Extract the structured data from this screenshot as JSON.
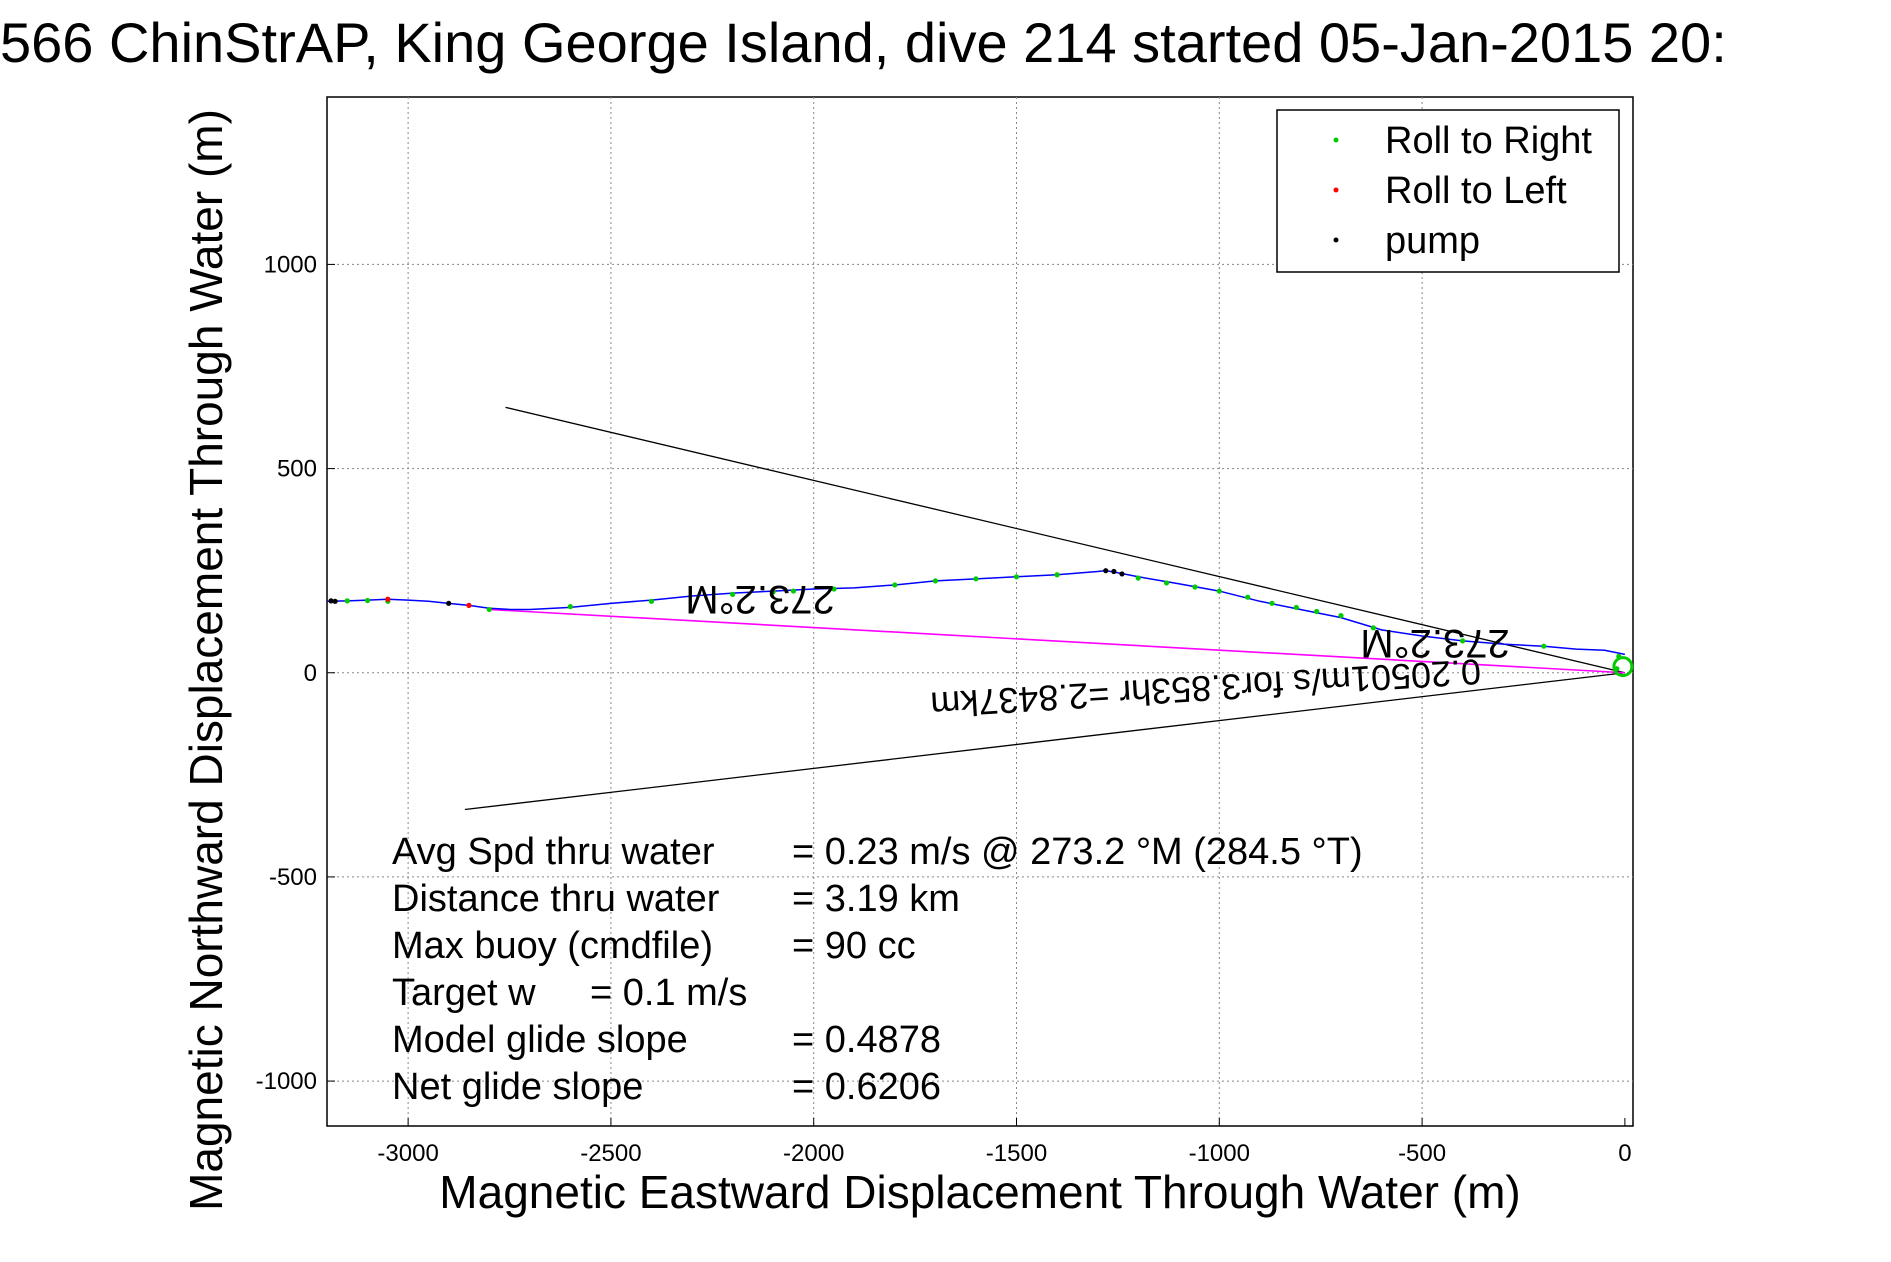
{
  "chart_data": {
    "type": "line",
    "title": "566 ChinStrAP, King George Island, dive 214 started 05-Jan-2015 20:",
    "xlabel": "Magnetic Eastward Displacement Through Water (m)",
    "ylabel": "Magnetic Northward Displacement Through Water (m)",
    "xlim": [
      -3200,
      20
    ],
    "ylim": [
      -1110,
      1410
    ],
    "grid": true,
    "x_ticks": [
      -3000,
      -2500,
      -2000,
      -1500,
      -1000,
      -500,
      0
    ],
    "y_ticks": [
      -1000,
      -500,
      0,
      500,
      1000
    ],
    "legend_placement": "top-right",
    "legend": [
      {
        "label": "Roll to Right",
        "color": "#00cc00"
      },
      {
        "label": "Roll to Left",
        "color": "#ff0000"
      },
      {
        "label": "pump",
        "color": "#000000"
      }
    ],
    "series": [
      {
        "kind": "track",
        "color": "#0000ff",
        "x": [
          0,
          -50,
          -120,
          -200,
          -300,
          -400,
          -500,
          -600,
          -700,
          -800,
          -900,
          -1000,
          -1100,
          -1200,
          -1250,
          -1280,
          -1300,
          -1400,
          -1500,
          -1600,
          -1700,
          -1800,
          -1900,
          -2000,
          -2100,
          -2200,
          -2300,
          -2400,
          -2500,
          -2600,
          -2700,
          -2750,
          -2800,
          -2850,
          -2900,
          -2950,
          -3000,
          -3050,
          -3100,
          -3150,
          -3200
        ],
        "y": [
          45,
          55,
          58,
          65,
          70,
          78,
          90,
          105,
          135,
          155,
          175,
          200,
          218,
          235,
          245,
          250,
          248,
          240,
          235,
          230,
          225,
          215,
          208,
          205,
          200,
          195,
          188,
          178,
          170,
          160,
          155,
          155,
          158,
          165,
          170,
          175,
          178,
          180,
          178,
          176,
          175
        ]
      },
      {
        "kind": "markers",
        "name": "Roll to Right",
        "color": "#00cc00",
        "x": [
          -15,
          -20,
          -200,
          -400,
          -620,
          -700,
          -760,
          -810,
          -870,
          -930,
          -1000,
          -1060,
          -1130,
          -1200,
          -1400,
          -1500,
          -1600,
          -1700,
          -1800,
          -1950,
          -2050,
          -2100,
          -2200,
          -2400,
          -2600,
          -2800,
          -3050,
          -3100,
          -3150
        ],
        "y": [
          40,
          10,
          65,
          78,
          110,
          140,
          150,
          160,
          170,
          185,
          200,
          210,
          220,
          232,
          240,
          235,
          230,
          225,
          215,
          205,
          200,
          198,
          192,
          175,
          162,
          155,
          175,
          177,
          176
        ]
      },
      {
        "kind": "markers",
        "name": "Roll to Left",
        "color": "#ff0000",
        "x": [
          -2850,
          -3050
        ],
        "y": [
          165,
          180
        ]
      },
      {
        "kind": "markers",
        "name": "pump",
        "color": "#000000",
        "x": [
          -1240,
          -1260,
          -1280,
          -2900,
          -3180,
          -3190
        ],
        "y": [
          242,
          248,
          250,
          170,
          175,
          176
        ]
      },
      {
        "kind": "net_line",
        "color": "#ff00ff",
        "x": [
          0,
          -2800
        ],
        "y": [
          0,
          155
        ]
      },
      {
        "kind": "cone",
        "color": "#000000",
        "x": [
          -2760,
          0,
          -2860
        ],
        "y": [
          650,
          0,
          -335
        ]
      }
    ],
    "annotations": {
      "upside_down": [
        {
          "text": "273.2°M",
          "x": -2400,
          "y": 205
        },
        {
          "text": "273.2°M",
          "x": -500,
          "y": 70
        },
        {
          "text": "0.20501m/s for3.853hr =2.8437km",
          "x": -1250,
          "y": 12
        }
      ],
      "summary": [
        {
          "label": "Avg Spd thru water",
          "value": "=  0.23 m/s @ 273.2 °M (284.5 °T)"
        },
        {
          "label": "Distance thru water",
          "value": "=  3.19 km"
        },
        {
          "label": "Max buoy (cmdfile)",
          "value": "= 90 cc"
        },
        {
          "label": "Target w",
          "value": "= 0.1 m/s"
        },
        {
          "label": "Model glide slope",
          "value": "= 0.4878"
        },
        {
          "label": "Net glide slope",
          "value": "= 0.6206"
        }
      ]
    }
  }
}
